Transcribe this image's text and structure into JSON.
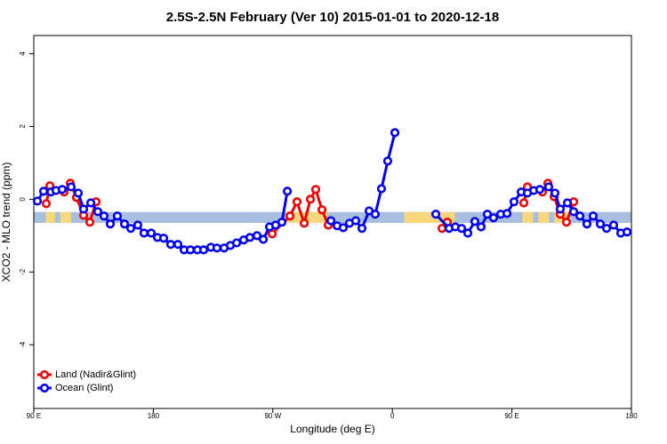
{
  "chart_data": {
    "type": "line",
    "title": "2.5S-2.5N February (Ver 10)   2015-01-01 to 2020-12-18",
    "x_label": "Longitude (deg E)",
    "y_label": "XCO2 - MLO trend (ppm)",
    "xlim": [
      90,
      540
    ],
    "ylim": [
      -5.75,
      4.5
    ],
    "xticks": [
      {
        "value": 90,
        "label": "90 E"
      },
      {
        "value": 180,
        "label": "180"
      },
      {
        "value": 270,
        "label": "90 W"
      },
      {
        "value": 360,
        "label": "0"
      },
      {
        "value": 450,
        "label": "90 E"
      },
      {
        "value": 540,
        "label": "180"
      }
    ],
    "yticks": [
      4,
      2,
      0,
      -2,
      -4
    ],
    "legend": "bottom-left",
    "band": {
      "range": [
        -0.65,
        -0.35
      ],
      "color": "#a9bfdf"
    },
    "land_segments": {
      "color": "#f8d77c",
      "ranges": [
        [
          99,
          106
        ],
        [
          110,
          118
        ],
        [
          280,
          311
        ],
        [
          369,
          407
        ],
        [
          458,
          466
        ],
        [
          470,
          478
        ],
        [
          482,
          493
        ]
      ]
    },
    "series": [
      {
        "name": "Land (Nadir&Glint)",
        "color": "#ee0000",
        "x": [
          99.4,
          102.1,
          112.8,
          117.5,
          122.1,
          127.5,
          132.2,
          136.9,
          null,
          269.5,
          282.9,
          288.2,
          293.6,
          298.3,
          302.3,
          307.0,
          311.7,
          null,
          397.4,
          401.4,
          null,
          459.0,
          461.7,
          473.0,
          477.1,
          481.8,
          486.4,
          491.1,
          496.5
        ],
        "values": [
          -0.12,
          0.37,
          0.2,
          0.44,
          0.05,
          -0.44,
          -0.63,
          -0.07,
          null,
          -0.95,
          -0.46,
          -0.07,
          -0.66,
          0.0,
          0.27,
          -0.29,
          -0.71,
          null,
          -0.8,
          -0.63,
          null,
          -0.1,
          0.34,
          0.2,
          0.44,
          0.07,
          -0.41,
          -0.63,
          -0.07
        ]
      },
      {
        "name": "Ocean (Glint)",
        "color": "#0000ee",
        "x": [
          92.7,
          97.4,
          102.9,
          106.7,
          111.4,
          118.1,
          123.5,
          127.5,
          132.9,
          138.2,
          142.9,
          147.6,
          152.9,
          158.3,
          163.0,
          168.3,
          173.0,
          178.4,
          183.1,
          187.8,
          193.1,
          198.5,
          203.2,
          207.9,
          213.2,
          217.9,
          223.3,
          227.9,
          233.3,
          238.0,
          242.7,
          248.0,
          252.7,
          258.1,
          262.8,
          267.5,
          272.1,
          276.8,
          280.9,
          null,
          313.7,
          318.4,
          323.0,
          327.7,
          332.4,
          337.1,
          342.5,
          347.1,
          351.8,
          356.5,
          361.9,
          null,
          392.7,
          402.7,
          407.4,
          412.1,
          416.8,
          422.1,
          426.8,
          431.5,
          436.2,
          441.6,
          446.3,
          451.6,
          457.0,
          461.7,
          466.4,
          471.0,
          477.7,
          482.4,
          486.4,
          491.8,
          496.5,
          501.2,
          506.5,
          511.2,
          516.6,
          521.3,
          526.6,
          532.0,
          536.7
        ],
        "values": [
          -0.05,
          0.22,
          0.2,
          0.24,
          0.27,
          0.34,
          0.17,
          -0.27,
          -0.1,
          -0.34,
          -0.46,
          -0.68,
          -0.46,
          -0.68,
          -0.8,
          -0.71,
          -0.93,
          -0.93,
          -1.05,
          -1.07,
          -1.24,
          -1.24,
          -1.39,
          -1.39,
          -1.39,
          -1.39,
          -1.32,
          -1.34,
          -1.34,
          -1.27,
          -1.2,
          -1.12,
          -1.05,
          -1.0,
          -1.1,
          -0.76,
          -0.71,
          -0.63,
          0.22,
          null,
          -0.59,
          -0.73,
          -0.78,
          -0.66,
          -0.59,
          -0.8,
          -0.32,
          -0.41,
          0.29,
          1.05,
          1.83,
          null,
          -0.41,
          -0.8,
          -0.76,
          -0.8,
          -0.93,
          -0.61,
          -0.76,
          -0.41,
          -0.51,
          -0.41,
          -0.39,
          -0.07,
          0.2,
          0.17,
          0.24,
          0.27,
          0.34,
          0.17,
          -0.27,
          -0.1,
          -0.34,
          -0.46,
          -0.68,
          -0.46,
          -0.68,
          -0.8,
          -0.71,
          -0.93,
          -0.9
        ]
      }
    ]
  }
}
